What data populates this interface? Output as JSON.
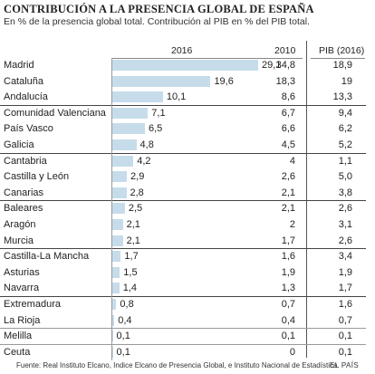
{
  "title": "CONTRIBUCIÓN A LA PRESENCIA GLOBAL DE ESPAÑA",
  "subtitle": "En % de la presencia global total. Contribución al PIB en % del PIB total.",
  "headers": {
    "col2016": "2016",
    "col2010": "2010",
    "colpib": "PIB (2016)"
  },
  "source": "Fuente: Real Instituto Elcano, Indice Elcano de Presencia Global, e Instituto Nacional de Estadística.",
  "credit": "EL PAÍS",
  "chart_data": {
    "type": "bar",
    "orientation": "horizontal",
    "title": "CONTRIBUCIÓN A LA PRESENCIA GLOBAL DE ESPAÑA",
    "subtitle": "En % de la presencia global total. Contribución al PIB en % del PIB total.",
    "categories": [
      "Madrid",
      "Cataluña",
      "Andalucía",
      "Comunidad Valenciana",
      "País Vasco",
      "Galicia",
      "Cantabria",
      "Castilla y León",
      "Canarias",
      "Baleares",
      "Aragón",
      "Murcia",
      "Castilla-La Mancha",
      "Asturias",
      "Navarra",
      "Extremadura",
      "La Rioja",
      "Melilla",
      "Ceuta"
    ],
    "series": [
      {
        "name": "2016",
        "values": [
          29.1,
          19.6,
          10.1,
          7.1,
          6.5,
          4.8,
          4.2,
          2.9,
          2.8,
          2.5,
          2.1,
          2.1,
          1.7,
          1.5,
          1.4,
          0.8,
          0.4,
          0.1,
          0.1
        ]
      },
      {
        "name": "2010",
        "values": [
          34.8,
          18.3,
          8.6,
          6.7,
          6.6,
          4.5,
          4,
          2.6,
          2.1,
          2.1,
          2,
          1.7,
          1.6,
          1.9,
          1.3,
          0.7,
          0.4,
          0.1,
          0
        ]
      },
      {
        "name": "PIB (2016)",
        "values": [
          18.9,
          19,
          13.3,
          9.4,
          6.2,
          5.2,
          1.1,
          5.0,
          3.8,
          2.6,
          3.1,
          2.6,
          3.4,
          1.9,
          1.7,
          1.6,
          0.7,
          0.1,
          0.1
        ]
      }
    ],
    "labels_2016": [
      "29,1",
      "19,6",
      "10,1",
      "7,1",
      "6,5",
      "4,8",
      "4,2",
      "2,9",
      "2,8",
      "2,5",
      "2,1",
      "2,1",
      "1,7",
      "1,5",
      "1,4",
      "0,8",
      "0,4",
      "0,1",
      "0,1"
    ],
    "labels_2010": [
      "34,8",
      "18,3",
      "8,6",
      "6,7",
      "6,6",
      "4,5",
      "4",
      "2,6",
      "2,1",
      "2,1",
      "2",
      "1,7",
      "1,6",
      "1,9",
      "1,3",
      "0,7",
      "0,4",
      "0,1",
      "0"
    ],
    "labels_pib": [
      "18,9",
      "19",
      "13,3",
      "9,4",
      "6,2",
      "5,2",
      "1,1",
      "5,0",
      "3,8",
      "2,6",
      "3,1",
      "2,6",
      "3,4",
      "1,9",
      "1,7",
      "1,6",
      "0,7",
      "0,1",
      "0,1"
    ],
    "groups": [
      [
        0,
        1,
        2
      ],
      [
        3,
        4,
        5
      ],
      [
        6,
        7,
        8
      ],
      [
        9,
        10,
        11
      ],
      [
        12,
        13,
        14
      ],
      [
        15,
        16
      ],
      [
        17
      ],
      [
        18
      ]
    ],
    "xlim": [
      0,
      35
    ],
    "grid": false,
    "legend": "none"
  }
}
